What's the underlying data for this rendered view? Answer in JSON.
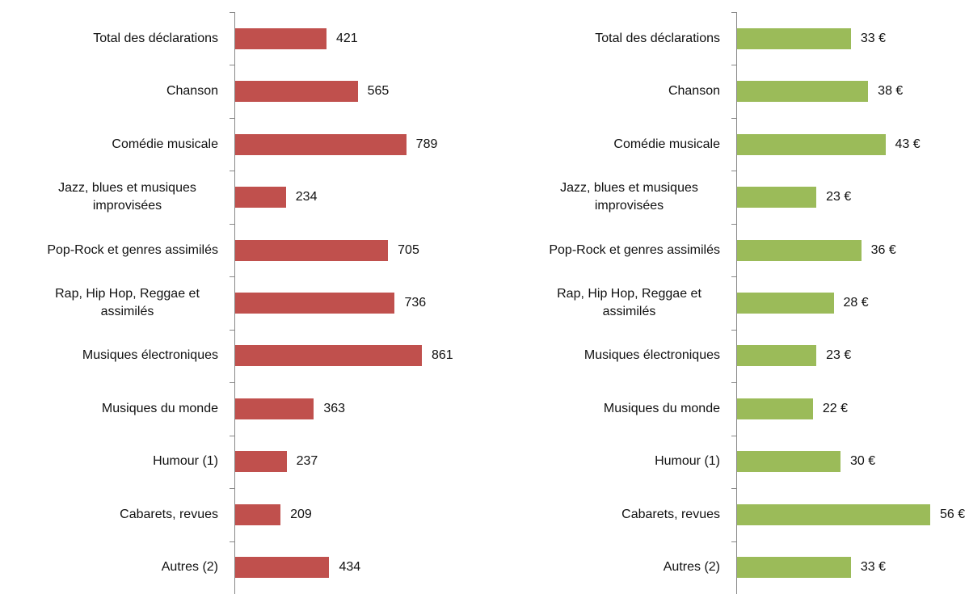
{
  "chart_data": [
    {
      "type": "barh",
      "color": "#c0504d",
      "categories": [
        "Total des déclarations",
        "Chanson",
        "Comédie musicale",
        "Jazz, blues et musiques improvisées",
        "Pop-Rock et genres assimilés",
        "Rap, Hip Hop, Reggae et assimilés",
        "Musiques électroniques",
        "Musiques du monde",
        "Humour (1)",
        "Cabarets, revues",
        "Autres (2)"
      ],
      "values": [
        421,
        565,
        789,
        234,
        705,
        736,
        861,
        363,
        237,
        209,
        434
      ]
    },
    {
      "type": "barh",
      "color": "#9bbb59",
      "categories": [
        "Total des déclarations",
        "Chanson",
        "Comédie musicale",
        "Jazz, blues et musiques improvisées",
        "Pop-Rock et genres assimilés",
        "Rap, Hip Hop, Reggae et assimilés",
        "Musiques électroniques",
        "Musiques du monde",
        "Humour (1)",
        "Cabarets, revues",
        "Autres (2)"
      ],
      "values": [
        33,
        38,
        43,
        23,
        36,
        28,
        23,
        22,
        30,
        56,
        33
      ],
      "value_labels": [
        "33 €",
        "38 €",
        "43 €",
        "23 €",
        "36 €",
        "28 €",
        "23 €",
        "22 €",
        "30 €",
        "56 €",
        "33 €"
      ]
    }
  ]
}
